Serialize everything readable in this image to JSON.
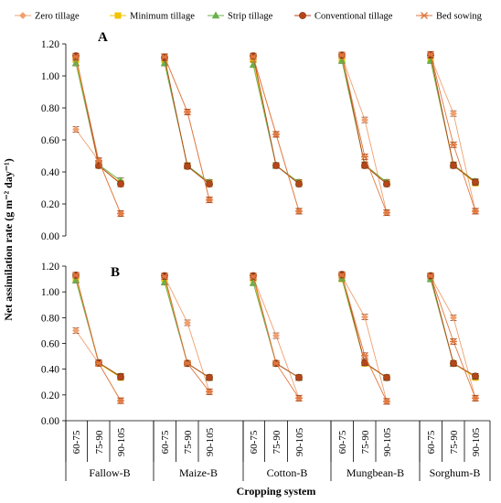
{
  "chart_data": {
    "type": "line",
    "ylabel": "Net assimilation rate (g m⁻² day⁻¹)",
    "xlabel": "Cropping system",
    "ylim": [
      0,
      1.2
    ],
    "yticks": [
      "0.00",
      "0.20",
      "0.40",
      "0.60",
      "0.80",
      "1.00",
      "1.20"
    ],
    "groups": [
      "Fallow-B",
      "Maize-B",
      "Cotton-B",
      "Mungbean-B",
      "Sorghum-B"
    ],
    "categories": [
      "60-75",
      "75-90",
      "90-105"
    ],
    "legend_position": "top",
    "series": [
      {
        "name": "Zero tillage",
        "color": "#f0a070",
        "marker": "diamond"
      },
      {
        "name": "Minimum tillage",
        "color": "#f2c300",
        "marker": "square"
      },
      {
        "name": "Strip tillage",
        "color": "#6ab04c",
        "marker": "triangle"
      },
      {
        "name": "Conventional tillage",
        "color": "#b5461a",
        "marker": "circle"
      },
      {
        "name": "Bed sowing",
        "color": "#e07840",
        "marker": "star"
      }
    ],
    "panels": [
      {
        "label": "A",
        "data": {
          "Zero tillage": [
            [
              0.665,
              0.47,
              0.14
            ],
            [
              1.12,
              0.775,
              0.225
            ],
            [
              1.115,
              0.635,
              0.155
            ],
            [
              1.12,
              0.725,
              0.145
            ],
            [
              1.12,
              0.765,
              0.155
            ]
          ],
          "Minimum tillage": [
            [
              1.1,
              0.44,
              0.33
            ],
            [
              1.1,
              0.44,
              0.33
            ],
            [
              1.1,
              0.44,
              0.33
            ],
            [
              1.1,
              0.44,
              0.33
            ],
            [
              1.1,
              0.44,
              0.33
            ]
          ],
          "Strip tillage": [
            [
              1.08,
              0.445,
              0.345
            ],
            [
              1.08,
              0.44,
              0.335
            ],
            [
              1.07,
              0.44,
              0.335
            ],
            [
              1.095,
              0.445,
              0.335
            ],
            [
              1.095,
              0.445,
              0.34
            ]
          ],
          "Conventional tillage": [
            [
              1.125,
              0.44,
              0.325
            ],
            [
              1.115,
              0.435,
              0.325
            ],
            [
              1.125,
              0.44,
              0.325
            ],
            [
              1.13,
              0.44,
              0.325
            ],
            [
              1.13,
              0.44,
              0.335
            ]
          ],
          "Bed sowing": [
            [
              1.12,
              0.47,
              0.14
            ],
            [
              1.12,
              0.775,
              0.225
            ],
            [
              1.12,
              0.635,
              0.155
            ],
            [
              1.13,
              0.495,
              0.145
            ],
            [
              1.135,
              0.57,
              0.155
            ]
          ]
        }
      },
      {
        "label": "B",
        "data": {
          "Zero tillage": [
            [
              0.7,
              0.445,
              0.155
            ],
            [
              1.12,
              0.76,
              0.225
            ],
            [
              1.115,
              0.66,
              0.175
            ],
            [
              1.12,
              0.805,
              0.15
            ],
            [
              1.12,
              0.8,
              0.175
            ]
          ],
          "Minimum tillage": [
            [
              1.1,
              0.445,
              0.335
            ],
            [
              1.1,
              0.445,
              0.335
            ],
            [
              1.1,
              0.445,
              0.335
            ],
            [
              1.1,
              0.445,
              0.335
            ],
            [
              1.1,
              0.445,
              0.335
            ]
          ],
          "Strip tillage": [
            [
              1.09,
              0.45,
              0.345
            ],
            [
              1.075,
              0.445,
              0.335
            ],
            [
              1.07,
              0.445,
              0.335
            ],
            [
              1.105,
              0.45,
              0.335
            ],
            [
              1.1,
              0.445,
              0.345
            ]
          ],
          "Conventional tillage": [
            [
              1.13,
              0.45,
              0.34
            ],
            [
              1.125,
              0.445,
              0.335
            ],
            [
              1.125,
              0.445,
              0.335
            ],
            [
              1.135,
              0.45,
              0.335
            ],
            [
              1.125,
              0.445,
              0.345
            ]
          ],
          "Bed sowing": [
            [
              1.13,
              0.445,
              0.155
            ],
            [
              1.12,
              0.445,
              0.225
            ],
            [
              1.12,
              0.445,
              0.175
            ],
            [
              1.13,
              0.505,
              0.15
            ],
            [
              1.125,
              0.615,
              0.175
            ]
          ]
        }
      }
    ]
  }
}
